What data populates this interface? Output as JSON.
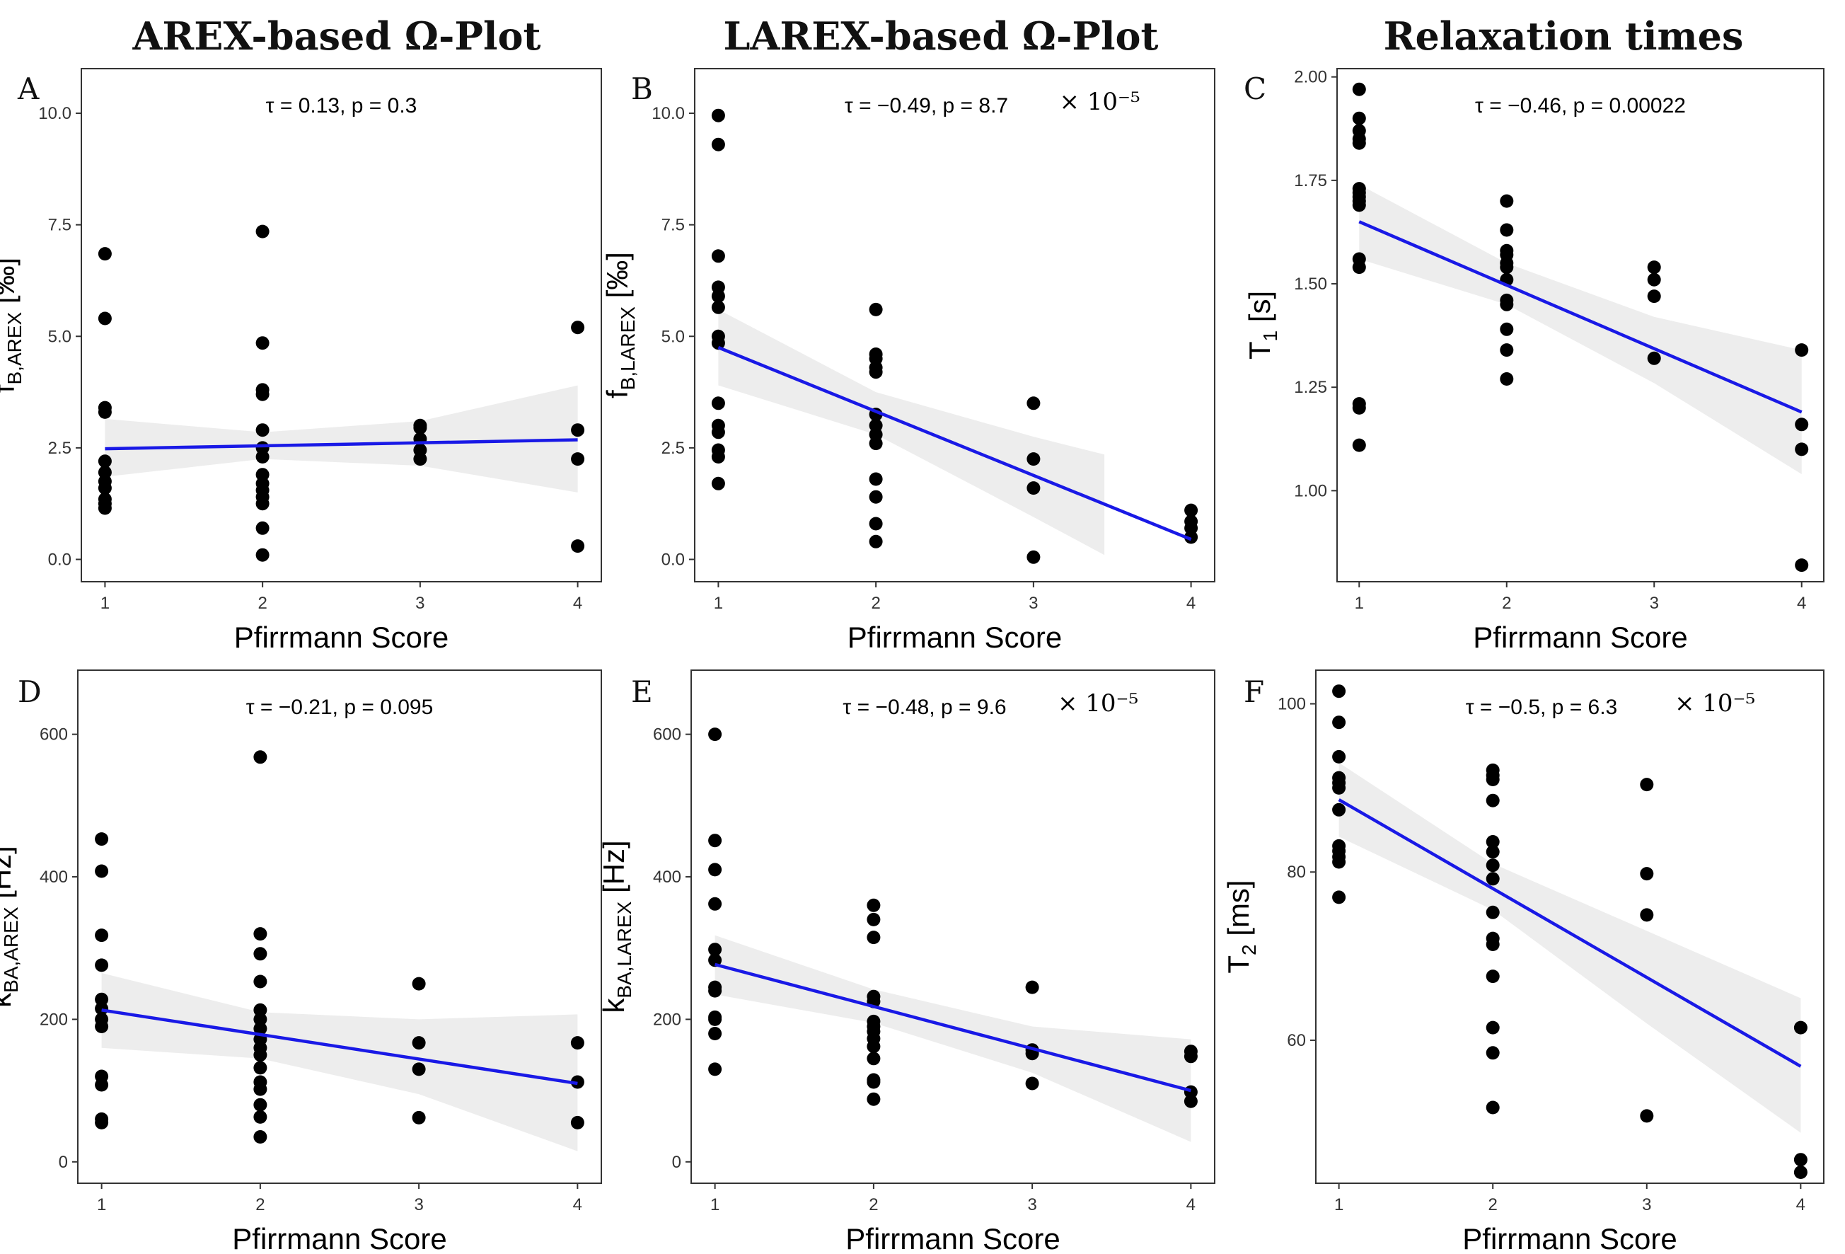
{
  "columns": [
    {
      "title": "AREX-based Ω-Plot"
    },
    {
      "title": "LAREX-based Ω-Plot"
    },
    {
      "title": "Relaxation times"
    }
  ],
  "chart_data": [
    {
      "id": "A",
      "type": "scatter",
      "letter": "A",
      "xlabel": "Pfirrmann Score",
      "ylabel": {
        "main": "f",
        "sub": "B,AREX",
        "suffix": " [‰]"
      },
      "annotation": {
        "text": "τ = 0.13, p = 0.3",
        "exponent": ""
      },
      "xlim": [
        0.85,
        4.15
      ],
      "ylim": [
        -0.5,
        11.0
      ],
      "xticks": [
        1,
        2,
        3,
        4
      ],
      "yticks": [
        0.0,
        2.5,
        5.0,
        7.5,
        10.0
      ],
      "ytick_labels": [
        "0.0",
        "2.5",
        "5.0",
        "7.5",
        "10.0"
      ],
      "points": [
        [
          1,
          6.85
        ],
        [
          1,
          5.4
        ],
        [
          1,
          3.4
        ],
        [
          1,
          3.3
        ],
        [
          1,
          2.2
        ],
        [
          1,
          1.95
        ],
        [
          1,
          1.75
        ],
        [
          1,
          1.6
        ],
        [
          1,
          1.35
        ],
        [
          1,
          1.25
        ],
        [
          1,
          1.15
        ],
        [
          2,
          7.35
        ],
        [
          2,
          4.85
        ],
        [
          2,
          3.8
        ],
        [
          2,
          3.7
        ],
        [
          2,
          2.9
        ],
        [
          2,
          2.5
        ],
        [
          2,
          2.3
        ],
        [
          2,
          1.9
        ],
        [
          2,
          1.7
        ],
        [
          2,
          1.55
        ],
        [
          2,
          1.4
        ],
        [
          2,
          1.25
        ],
        [
          2,
          0.7
        ],
        [
          2,
          0.1
        ],
        [
          3,
          3.0
        ],
        [
          3,
          2.95
        ],
        [
          3,
          2.7
        ],
        [
          3,
          2.45
        ],
        [
          3,
          2.25
        ],
        [
          4,
          5.2
        ],
        [
          4,
          2.9
        ],
        [
          4,
          2.25
        ],
        [
          4,
          0.3
        ]
      ],
      "fit": {
        "x": [
          1,
          4
        ],
        "y": [
          2.48,
          2.68
        ]
      },
      "band": {
        "x": [
          1,
          2,
          3,
          4
        ],
        "lower": [
          1.85,
          2.25,
          2.1,
          1.5
        ],
        "upper": [
          3.15,
          2.85,
          3.1,
          3.9
        ]
      }
    },
    {
      "id": "B",
      "type": "scatter",
      "letter": "B",
      "xlabel": "Pfirrmann Score",
      "ylabel": {
        "main": "f",
        "sub": "B,LAREX",
        "suffix": " [‰]"
      },
      "annotation": {
        "text": "τ = −0.49, p = 8.7",
        "exponent": "× 10⁻⁵"
      },
      "xlim": [
        0.85,
        4.15
      ],
      "ylim": [
        -0.5,
        11.0
      ],
      "xticks": [
        1,
        2,
        3,
        4
      ],
      "yticks": [
        0.0,
        2.5,
        5.0,
        7.5,
        10.0
      ],
      "ytick_labels": [
        "0.0",
        "2.5",
        "5.0",
        "7.5",
        "10.0"
      ],
      "points": [
        [
          1,
          9.95
        ],
        [
          1,
          9.3
        ],
        [
          1,
          6.8
        ],
        [
          1,
          6.1
        ],
        [
          1,
          5.9
        ],
        [
          1,
          5.65
        ],
        [
          1,
          5.0
        ],
        [
          1,
          4.85
        ],
        [
          1,
          3.5
        ],
        [
          1,
          3.0
        ],
        [
          1,
          2.85
        ],
        [
          1,
          2.45
        ],
        [
          1,
          2.3
        ],
        [
          1,
          1.7
        ],
        [
          2,
          5.6
        ],
        [
          2,
          4.6
        ],
        [
          2,
          4.5
        ],
        [
          2,
          4.3
        ],
        [
          2,
          4.2
        ],
        [
          2,
          3.25
        ],
        [
          2,
          3.0
        ],
        [
          2,
          2.8
        ],
        [
          2,
          2.6
        ],
        [
          2,
          1.8
        ],
        [
          2,
          1.4
        ],
        [
          2,
          0.8
        ],
        [
          2,
          0.4
        ],
        [
          3,
          3.5
        ],
        [
          3,
          2.25
        ],
        [
          3,
          1.6
        ],
        [
          3,
          0.05
        ],
        [
          4,
          1.1
        ],
        [
          4,
          0.85
        ],
        [
          4,
          0.7
        ],
        [
          4,
          0.5
        ]
      ],
      "fit": {
        "x": [
          1,
          4
        ],
        "y": [
          4.75,
          0.45
        ]
      },
      "band": {
        "x": [
          1,
          2,
          3,
          3.45
        ],
        "lower": [
          3.9,
          2.8,
          0.95,
          0.1
        ],
        "upper": [
          5.6,
          3.75,
          2.75,
          2.35
        ]
      }
    },
    {
      "id": "C",
      "type": "scatter",
      "letter": "C",
      "xlabel": "Pfirrmann Score",
      "ylabel": {
        "main": "T",
        "sub": "1",
        "suffix": " [s]"
      },
      "annotation": {
        "text": "τ = −0.46, p = 0.00022",
        "exponent": ""
      },
      "xlim": [
        0.85,
        4.15
      ],
      "ylim": [
        0.78,
        2.02
      ],
      "xticks": [
        1,
        2,
        3,
        4
      ],
      "yticks": [
        1.0,
        1.25,
        1.5,
        1.75,
        2.0
      ],
      "ytick_labels": [
        "1.00",
        "1.25",
        "1.50",
        "1.75",
        "2.00"
      ],
      "points": [
        [
          1,
          1.97
        ],
        [
          1,
          1.9
        ],
        [
          1,
          1.87
        ],
        [
          1,
          1.85
        ],
        [
          1,
          1.84
        ],
        [
          1,
          1.73
        ],
        [
          1,
          1.72
        ],
        [
          1,
          1.71
        ],
        [
          1,
          1.7
        ],
        [
          1,
          1.69
        ],
        [
          1,
          1.56
        ],
        [
          1,
          1.54
        ],
        [
          1,
          1.21
        ],
        [
          1,
          1.2
        ],
        [
          1,
          1.11
        ],
        [
          2,
          1.7
        ],
        [
          2,
          1.63
        ],
        [
          2,
          1.58
        ],
        [
          2,
          1.57
        ],
        [
          2,
          1.55
        ],
        [
          2,
          1.54
        ],
        [
          2,
          1.51
        ],
        [
          2,
          1.46
        ],
        [
          2,
          1.45
        ],
        [
          2,
          1.39
        ],
        [
          2,
          1.34
        ],
        [
          2,
          1.27
        ],
        [
          3,
          1.54
        ],
        [
          3,
          1.51
        ],
        [
          3,
          1.47
        ],
        [
          3,
          1.32
        ],
        [
          4,
          1.34
        ],
        [
          4,
          1.16
        ],
        [
          4,
          1.1
        ],
        [
          4,
          0.82
        ]
      ],
      "fit": {
        "x": [
          1,
          4
        ],
        "y": [
          1.65,
          1.19
        ]
      },
      "band": {
        "x": [
          1,
          2,
          3,
          4
        ],
        "lower": [
          1.56,
          1.45,
          1.26,
          1.04
        ],
        "upper": [
          1.74,
          1.55,
          1.42,
          1.34
        ]
      }
    },
    {
      "id": "D",
      "type": "scatter",
      "letter": "D",
      "xlabel": "Pfirrmann Score",
      "ylabel": {
        "main": "k",
        "sub": "BA,AREX",
        "suffix": " [Hz]"
      },
      "annotation": {
        "text": "τ = −0.21, p = 0.095",
        "exponent": ""
      },
      "xlim": [
        0.85,
        4.15
      ],
      "ylim": [
        -30,
        690
      ],
      "xticks": [
        1,
        2,
        3,
        4
      ],
      "yticks": [
        0,
        200,
        400,
        600
      ],
      "ytick_labels": [
        "0",
        "200",
        "400",
        "600"
      ],
      "points": [
        [
          1,
          453
        ],
        [
          1,
          408
        ],
        [
          1,
          318
        ],
        [
          1,
          276
        ],
        [
          1,
          228
        ],
        [
          1,
          215
        ],
        [
          1,
          200
        ],
        [
          1,
          190
        ],
        [
          1,
          120
        ],
        [
          1,
          108
        ],
        [
          1,
          60
        ],
        [
          1,
          55
        ],
        [
          2,
          568
        ],
        [
          2,
          320
        ],
        [
          2,
          292
        ],
        [
          2,
          253
        ],
        [
          2,
          213
        ],
        [
          2,
          200
        ],
        [
          2,
          187
        ],
        [
          2,
          172
        ],
        [
          2,
          160
        ],
        [
          2,
          150
        ],
        [
          2,
          132
        ],
        [
          2,
          112
        ],
        [
          2,
          102
        ],
        [
          2,
          80
        ],
        [
          2,
          63
        ],
        [
          2,
          35
        ],
        [
          3,
          250
        ],
        [
          3,
          167
        ],
        [
          3,
          130
        ],
        [
          3,
          62
        ],
        [
          4,
          167
        ],
        [
          4,
          112
        ],
        [
          4,
          55
        ]
      ],
      "fit": {
        "x": [
          1,
          4
        ],
        "y": [
          213,
          110
        ]
      },
      "band": {
        "x": [
          1,
          2,
          3,
          4
        ],
        "lower": [
          160,
          145,
          95,
          15
        ],
        "upper": [
          265,
          210,
          200,
          207
        ]
      }
    },
    {
      "id": "E",
      "type": "scatter",
      "letter": "E",
      "xlabel": "Pfirrmann Score",
      "ylabel": {
        "main": "k",
        "sub": "BA,LAREX",
        "suffix": " [Hz]"
      },
      "annotation": {
        "text": "τ = −0.48, p = 9.6",
        "exponent": "× 10⁻⁵"
      },
      "xlim": [
        0.85,
        4.15
      ],
      "ylim": [
        -30,
        690
      ],
      "xticks": [
        1,
        2,
        3,
        4
      ],
      "yticks": [
        0,
        200,
        400,
        600
      ],
      "ytick_labels": [
        "0",
        "200",
        "400",
        "600"
      ],
      "points": [
        [
          1,
          600
        ],
        [
          1,
          451
        ],
        [
          1,
          410
        ],
        [
          1,
          362
        ],
        [
          1,
          298
        ],
        [
          1,
          283
        ],
        [
          1,
          245
        ],
        [
          1,
          240
        ],
        [
          1,
          203
        ],
        [
          1,
          200
        ],
        [
          1,
          180
        ],
        [
          1,
          130
        ],
        [
          2,
          360
        ],
        [
          2,
          340
        ],
        [
          2,
          315
        ],
        [
          2,
          232
        ],
        [
          2,
          225
        ],
        [
          2,
          197
        ],
        [
          2,
          190
        ],
        [
          2,
          183
        ],
        [
          2,
          173
        ],
        [
          2,
          162
        ],
        [
          2,
          145
        ],
        [
          2,
          115
        ],
        [
          2,
          112
        ],
        [
          2,
          88
        ],
        [
          3,
          245
        ],
        [
          3,
          157
        ],
        [
          3,
          152
        ],
        [
          3,
          110
        ],
        [
          4,
          155
        ],
        [
          4,
          148
        ],
        [
          4,
          98
        ],
        [
          4,
          85
        ]
      ],
      "fit": {
        "x": [
          1,
          4
        ],
        "y": [
          277,
          100
        ]
      },
      "band": {
        "x": [
          1,
          2,
          3,
          4
        ],
        "lower": [
          235,
          195,
          125,
          28
        ],
        "upper": [
          318,
          242,
          190,
          172
        ]
      }
    },
    {
      "id": "F",
      "type": "scatter",
      "letter": "F",
      "xlabel": "Pfirrmann Score",
      "ylabel": {
        "main": "T",
        "sub": "2",
        "suffix": " [ms]"
      },
      "annotation": {
        "text": "τ = −0.5, p = 6.3",
        "exponent": "× 10⁻⁵"
      },
      "xlim": [
        0.85,
        4.15
      ],
      "ylim": [
        43,
        104
      ],
      "xticks": [
        1,
        2,
        3,
        4
      ],
      "yticks": [
        60,
        80,
        100
      ],
      "ytick_labels": [
        "60",
        "80",
        "100"
      ],
      "points": [
        [
          1,
          101.5
        ],
        [
          1,
          97.8
        ],
        [
          1,
          93.7
        ],
        [
          1,
          91.2
        ],
        [
          1,
          90.6
        ],
        [
          1,
          90.0
        ],
        [
          1,
          87.4
        ],
        [
          1,
          83.1
        ],
        [
          1,
          82.5
        ],
        [
          1,
          81.8
        ],
        [
          1,
          81.2
        ],
        [
          1,
          77.0
        ],
        [
          2,
          92.1
        ],
        [
          2,
          91.5
        ],
        [
          2,
          91.0
        ],
        [
          2,
          88.5
        ],
        [
          2,
          83.6
        ],
        [
          2,
          82.4
        ],
        [
          2,
          80.8
        ],
        [
          2,
          79.2
        ],
        [
          2,
          75.2
        ],
        [
          2,
          72.1
        ],
        [
          2,
          71.4
        ],
        [
          2,
          67.6
        ],
        [
          2,
          61.5
        ],
        [
          2,
          58.5
        ],
        [
          2,
          52.0
        ],
        [
          3,
          90.4
        ],
        [
          3,
          79.8
        ],
        [
          3,
          74.9
        ],
        [
          3,
          51.0
        ],
        [
          4,
          61.5
        ],
        [
          4,
          45.8
        ],
        [
          4,
          44.3
        ]
      ],
      "fit": {
        "x": [
          1,
          4
        ],
        "y": [
          88.6,
          56.9
        ]
      },
      "band": {
        "x": [
          1,
          2,
          3,
          4
        ],
        "lower": [
          84.2,
          75.5,
          62.0,
          49.0
        ],
        "upper": [
          93.0,
          81.0,
          73.0,
          65.0
        ]
      }
    }
  ]
}
